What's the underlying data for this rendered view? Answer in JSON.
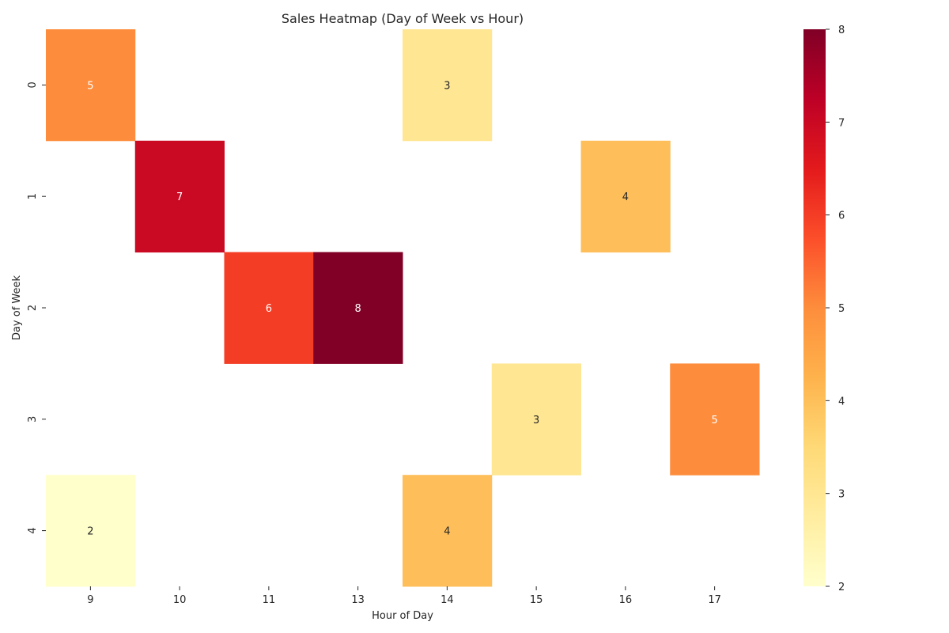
{
  "chart_data": {
    "type": "heatmap",
    "title": "Sales Heatmap (Day of Week vs Hour)",
    "xlabel": "Hour of Day",
    "ylabel": "Day of Week",
    "x_categories": [
      "9",
      "10",
      "11",
      "13",
      "14",
      "15",
      "16",
      "17"
    ],
    "y_categories": [
      "0",
      "1",
      "2",
      "3",
      "4"
    ],
    "cells": [
      {
        "x": "9",
        "y": "0",
        "value": 5
      },
      {
        "x": "14",
        "y": "0",
        "value": 3
      },
      {
        "x": "10",
        "y": "1",
        "value": 7
      },
      {
        "x": "16",
        "y": "1",
        "value": 4
      },
      {
        "x": "11",
        "y": "2",
        "value": 6
      },
      {
        "x": "13",
        "y": "2",
        "value": 8
      },
      {
        "x": "15",
        "y": "3",
        "value": 3
      },
      {
        "x": "17",
        "y": "3",
        "value": 5
      },
      {
        "x": "9",
        "y": "4",
        "value": 2
      },
      {
        "x": "14",
        "y": "4",
        "value": 4
      }
    ],
    "colorbar": {
      "colormap": "YlOrRd",
      "vmin": 2,
      "vmax": 8,
      "ticks": [
        "2",
        "3",
        "4",
        "5",
        "6",
        "7",
        "8"
      ]
    },
    "grid": false
  }
}
